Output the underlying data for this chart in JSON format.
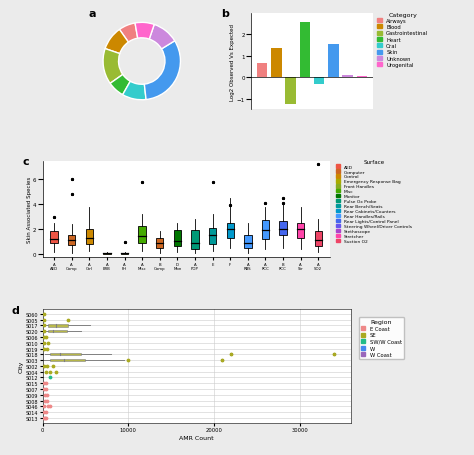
{
  "donut": {
    "sizes": [
      0.07,
      0.1,
      0.15,
      0.07,
      0.1,
      0.32,
      0.11,
      0.08
    ],
    "colors": [
      "#F08080",
      "#CC8800",
      "#99BB33",
      "#33BB33",
      "#33CCCC",
      "#4499EE",
      "#CC88DD",
      "#FF66CC"
    ],
    "labels": [
      "Airways",
      "Blood",
      "Gastrointestinal",
      "Heart",
      "Oral",
      "Skin",
      "Unknown",
      "Urogenital"
    ],
    "startangle": 100
  },
  "bar_b": {
    "values": [
      0.65,
      1.35,
      -1.25,
      2.55,
      -0.3,
      1.55,
      0.08,
      0.06
    ],
    "colors": [
      "#F08080",
      "#CC8800",
      "#99BB33",
      "#33BB33",
      "#33CCCC",
      "#4499EE",
      "#CC88DD",
      "#FF66CC"
    ],
    "ylabel": "Log2 Observed Vs Expected",
    "ylim": [
      -1.5,
      3.0
    ],
    "yticks": [
      -1,
      0,
      1,
      2
    ]
  },
  "legend_b": {
    "categories": [
      "Airways",
      "Blood",
      "Gastrointestinal",
      "Heart",
      "Oral",
      "Skin",
      "Unknown",
      "Urogenital"
    ],
    "colors": [
      "#F08080",
      "#CC8800",
      "#99BB33",
      "#33BB33",
      "#33CCCC",
      "#4499EE",
      "#CC88DD",
      "#FF66CC"
    ]
  },
  "boxplot_c": {
    "ylabel": "Skin Associated Species",
    "surface_legend": {
      "labels": [
        "AED",
        "Computer",
        "Control",
        "Emergency Response Bag",
        "Front Handles",
        "Misc",
        "Monitor",
        "Pulse Ox Probe",
        "Rear Bench/Seats",
        "Rear Cabinets/Counters",
        "Rear Handles/Rails",
        "Rear Lights/Control Panel",
        "Steering Wheel/Driver Controls",
        "Stethoscope",
        "Stretcher",
        "Suction O2"
      ],
      "colors": [
        "#EE5544",
        "#CC6622",
        "#CC8800",
        "#AAAA00",
        "#88AA22",
        "#44AA00",
        "#007700",
        "#009977",
        "#009999",
        "#0099CC",
        "#4499FF",
        "#4466EE",
        "#6655EE",
        "#AA44CC",
        "#FF44AA",
        "#EE4466"
      ]
    },
    "groups": [
      {
        "label": "A\nAED",
        "color": "#EE5544",
        "median": 1.2,
        "q1": 0.85,
        "q3": 1.85,
        "whislo": 0.15,
        "whishi": 2.5,
        "fliers": [
          3.0
        ],
        "outlier_low": 3.0
      },
      {
        "label": "A\nComp",
        "color": "#CC6622",
        "median": 1.1,
        "q1": 0.7,
        "q3": 1.55,
        "whislo": 0.05,
        "whishi": 2.4,
        "fliers": [
          4.8,
          6.0
        ]
      },
      {
        "label": "A\nCtrl",
        "color": "#CC8800",
        "median": 1.3,
        "q1": 0.8,
        "q3": 2.0,
        "whislo": 0.2,
        "whishi": 3.8,
        "fliers": []
      },
      {
        "label": "A\nERB",
        "color": "#AAAA00",
        "median": 0.04,
        "q1": 0.01,
        "q3": 0.08,
        "whislo": 0.0,
        "whishi": 0.12,
        "fliers": []
      },
      {
        "label": "A\nFH",
        "color": "#88AA22",
        "median": 0.04,
        "q1": 0.01,
        "q3": 0.08,
        "whislo": 0.0,
        "whishi": 0.12,
        "fliers": [
          0.95
        ]
      },
      {
        "label": "A\nMisc",
        "color": "#44AA00",
        "median": 1.4,
        "q1": 0.9,
        "q3": 2.2,
        "whislo": 0.2,
        "whishi": 3.2,
        "fliers": [
          5.8
        ]
      },
      {
        "label": "B\nComp",
        "color": "#CC6622",
        "median": 0.85,
        "q1": 0.5,
        "q3": 1.25,
        "whislo": 0.05,
        "whishi": 1.8,
        "fliers": []
      },
      {
        "label": "D\nMon",
        "color": "#007700",
        "median": 1.0,
        "q1": 0.6,
        "q3": 1.9,
        "whislo": 0.1,
        "whishi": 2.5,
        "fliers": []
      },
      {
        "label": "A\nPOP",
        "color": "#009977",
        "median": 0.9,
        "q1": 0.4,
        "q3": 1.9,
        "whislo": 0.05,
        "whishi": 2.8,
        "fliers": []
      },
      {
        "label": "E",
        "color": "#009999",
        "median": 1.5,
        "q1": 0.8,
        "q3": 2.1,
        "whislo": 0.2,
        "whishi": 3.2,
        "fliers": [
          5.8
        ]
      },
      {
        "label": "F",
        "color": "#0099CC",
        "median": 2.0,
        "q1": 1.3,
        "q3": 2.5,
        "whislo": 0.5,
        "whishi": 4.5,
        "fliers": [
          3.9
        ]
      },
      {
        "label": "A\nRBS",
        "color": "#4499FF",
        "median": 0.9,
        "q1": 0.5,
        "q3": 1.5,
        "whislo": 0.05,
        "whishi": 2.5,
        "fliers": []
      },
      {
        "label": "A\nRCC",
        "color": "#4499FF",
        "median": 1.9,
        "q1": 1.2,
        "q3": 2.7,
        "whislo": 0.4,
        "whishi": 3.8,
        "fliers": [
          4.1
        ]
      },
      {
        "label": "B\nRCC",
        "color": "#4466EE",
        "median": 2.0,
        "q1": 1.5,
        "q3": 2.6,
        "whislo": 0.5,
        "whishi": 4.0,
        "fliers": [
          4.1,
          4.5
        ]
      },
      {
        "label": "A\nStr",
        "color": "#FF44AA",
        "median": 2.0,
        "q1": 1.3,
        "q3": 2.5,
        "whislo": 0.4,
        "whishi": 3.8,
        "fliers": []
      },
      {
        "label": "A\nSO2",
        "color": "#EE4466",
        "median": 1.1,
        "q1": 0.6,
        "q3": 1.8,
        "whislo": 0.1,
        "whishi": 2.8,
        "fliers": [
          7.2
        ]
      }
    ],
    "ylim": [
      -0.3,
      7.5
    ],
    "yticks": [
      0,
      2,
      4,
      6
    ]
  },
  "scatter_d": {
    "xlabel": "AMR Count",
    "ylabel": "City",
    "cities": [
      "S013",
      "S014",
      "S046",
      "S008",
      "S009",
      "S007",
      "S015",
      "S012",
      "S004",
      "S002",
      "S003",
      "S018",
      "S019",
      "S010",
      "S006",
      "S020",
      "S017",
      "S005",
      "S060"
    ],
    "region_colors": {
      "E Coast": "#EE8888",
      "SE": "#AAAA22",
      "SW/W Coast": "#22BB88",
      "W": "#4488EE",
      "W Coast": "#9966BB"
    },
    "city_regions": {
      "S013": "E Coast",
      "S014": "E Coast",
      "S046": "E Coast",
      "S008": "E Coast",
      "S009": "E Coast",
      "S007": "E Coast",
      "S015": "E Coast",
      "S012": "SW/W Coast",
      "S004": "SE",
      "S002": "SE",
      "S003": "SE",
      "S018": "SE",
      "S019": "SE",
      "S010": "SE",
      "S006": "SE",
      "S020": "SE",
      "S017": "SE",
      "S005": "SE",
      "S060": "SE"
    },
    "boxplot_data": {
      "S003": {
        "median": 2500,
        "q1": 800,
        "q3": 5000,
        "whislo": 200,
        "whishi": 9500,
        "fliers": [
          21000
        ]
      },
      "S018": {
        "median": 2000,
        "q1": 900,
        "q3": 4500,
        "whislo": 300,
        "whishi": 8000,
        "fliers": [
          22000,
          34000
        ]
      },
      "S017": {
        "median": 1500,
        "q1": 600,
        "q3": 3000,
        "whislo": 200,
        "whishi": 5500,
        "fliers": []
      },
      "S020": {
        "median": 1200,
        "q1": 600,
        "q3": 2800,
        "whislo": 100,
        "whishi": 4500,
        "fliers": []
      }
    },
    "scatter_points": [
      {
        "city": "S013",
        "x": 120,
        "region": "E Coast"
      },
      {
        "city": "S013",
        "x": 280,
        "region": "E Coast"
      },
      {
        "city": "S013",
        "x": 420,
        "region": "E Coast"
      },
      {
        "city": "S014",
        "x": 200,
        "region": "E Coast"
      },
      {
        "city": "S014",
        "x": 380,
        "region": "E Coast"
      },
      {
        "city": "S046",
        "x": 150,
        "region": "E Coast"
      },
      {
        "city": "S046",
        "x": 600,
        "region": "E Coast"
      },
      {
        "city": "S046",
        "x": 900,
        "region": "E Coast"
      },
      {
        "city": "S008",
        "x": 250,
        "region": "E Coast"
      },
      {
        "city": "S008",
        "x": 450,
        "region": "E Coast"
      },
      {
        "city": "S009",
        "x": 300,
        "region": "E Coast"
      },
      {
        "city": "S009",
        "x": 550,
        "region": "E Coast"
      },
      {
        "city": "S007",
        "x": 200,
        "region": "E Coast"
      },
      {
        "city": "S007",
        "x": 400,
        "region": "E Coast"
      },
      {
        "city": "S015",
        "x": 180,
        "region": "E Coast"
      },
      {
        "city": "S015",
        "x": 380,
        "region": "E Coast"
      },
      {
        "city": "S012",
        "x": 900,
        "region": "SW/W Coast"
      },
      {
        "city": "S004",
        "x": 350,
        "region": "SE"
      },
      {
        "city": "S004",
        "x": 800,
        "region": "SE"
      },
      {
        "city": "S004",
        "x": 1500,
        "region": "SE"
      },
      {
        "city": "S002",
        "x": 200,
        "region": "SE"
      },
      {
        "city": "S002",
        "x": 500,
        "region": "SE"
      },
      {
        "city": "S002",
        "x": 1200,
        "region": "SE"
      },
      {
        "city": "S003",
        "x": 10000,
        "region": "SE"
      },
      {
        "city": "S003",
        "x": 21000,
        "region": "SE"
      },
      {
        "city": "S018",
        "x": 22000,
        "region": "SE"
      },
      {
        "city": "S018",
        "x": 34000,
        "region": "SE"
      },
      {
        "city": "S019",
        "x": 200,
        "region": "SE"
      },
      {
        "city": "S019",
        "x": 500,
        "region": "SE"
      },
      {
        "city": "S010",
        "x": 200,
        "region": "SE"
      },
      {
        "city": "S010",
        "x": 600,
        "region": "SE"
      },
      {
        "city": "S006",
        "x": 150,
        "region": "SE"
      },
      {
        "city": "S006",
        "x": 400,
        "region": "SE"
      },
      {
        "city": "S020",
        "x": 100,
        "region": "SE"
      },
      {
        "city": "S017",
        "x": 100,
        "region": "SE"
      },
      {
        "city": "S005",
        "x": 100,
        "region": "SE"
      },
      {
        "city": "S005",
        "x": 3000,
        "region": "SE"
      },
      {
        "city": "S060",
        "x": 100,
        "region": "SE"
      }
    ],
    "xlim": [
      0,
      36000
    ],
    "xticks": [
      0,
      10000,
      20000,
      30000
    ],
    "xticklabels": [
      "0",
      "10000",
      "20000",
      "30000"
    ]
  },
  "background_color": "#EBEBEB",
  "panel_bg": "#FFFFFF"
}
